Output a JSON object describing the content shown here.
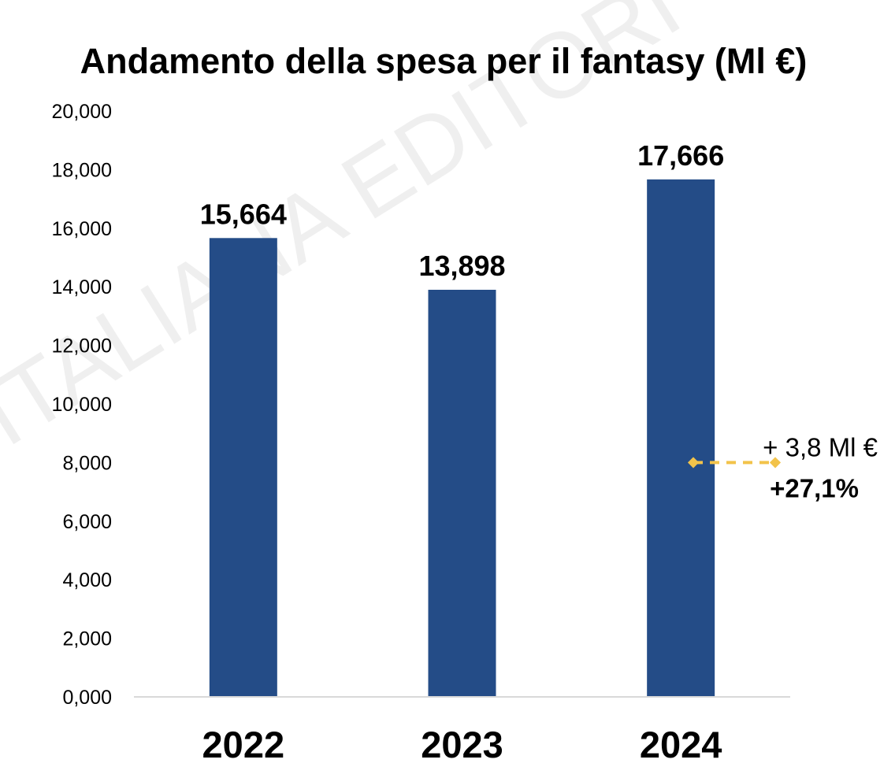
{
  "chart_data": {
    "type": "bar",
    "title": "Andamento della spesa per il fantasy (Ml €)",
    "watermark": "ITALIANA EDITORI",
    "categories": [
      "2022",
      "2023",
      "2024"
    ],
    "values": [
      15.664,
      13.898,
      17.666
    ],
    "data_labels": [
      "15,664",
      "13,898",
      "17,666"
    ],
    "ylim": [
      0,
      20
    ],
    "yticks": [
      0,
      2,
      4,
      6,
      8,
      10,
      12,
      14,
      16,
      18,
      20
    ],
    "ytick_labels": [
      "0,000",
      "2,000",
      "4,000",
      "6,000",
      "8,000",
      "10,000",
      "12,000",
      "14,000",
      "16,000",
      "18,000",
      "20,000"
    ],
    "xlabel": "",
    "ylabel": "",
    "grid": false,
    "legend": "none",
    "bar_color": "#244C87",
    "annotation": {
      "delta_text": "+ 3,8 Ml €",
      "pct_text": "+27,1%",
      "y_value": 8,
      "color": "#F2C34A"
    }
  }
}
